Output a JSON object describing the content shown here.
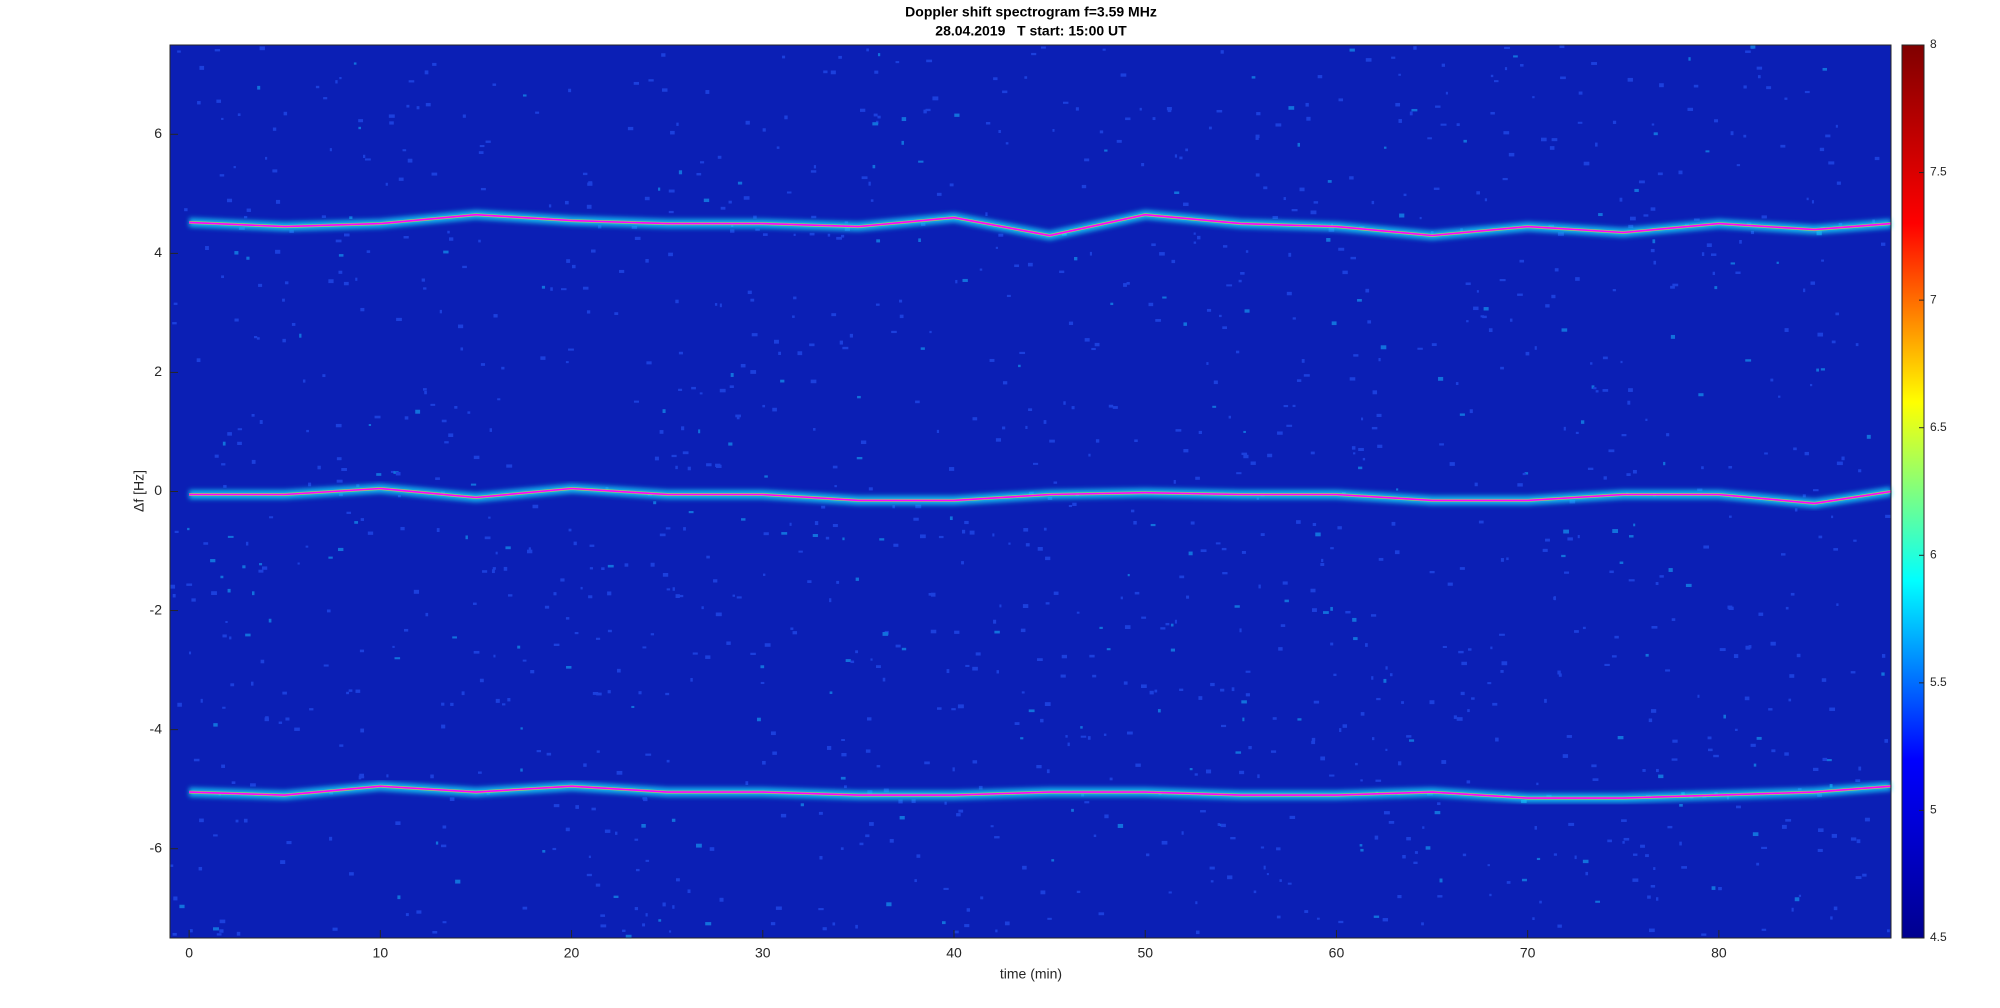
{
  "chart_data": {
    "type": "spectrogram",
    "title": "Doppler shift spectrogram f=3.59 MHz",
    "subtitle": "28.04.2019   T start: 15:00 UT",
    "x_label": "time (min)",
    "y_label": "Δf [Hz]",
    "xlim": [
      -1,
      89
    ],
    "ylim": [
      -7.5,
      7.5
    ],
    "xticks": [
      0,
      10,
      20,
      30,
      40,
      50,
      60,
      70,
      80
    ],
    "yticks": [
      -6,
      -4,
      -2,
      0,
      2,
      4,
      6
    ],
    "colormap": [
      "#00008f",
      "#0000ff",
      "#00ffff",
      "#ffff00",
      "#ff0000",
      "#800000"
    ],
    "clim": [
      4.5,
      8
    ],
    "cticks": [
      4.5,
      5,
      5.5,
      6,
      6.5,
      7,
      7.5,
      8
    ],
    "background_color": "#0b1fb5",
    "x": [
      0,
      5,
      10,
      15,
      20,
      25,
      30,
      35,
      40,
      45,
      50,
      55,
      60,
      65,
      70,
      75,
      80,
      85,
      89
    ],
    "series": [
      {
        "color": "#ff00ff",
        "values": [
          4.52,
          4.45,
          4.5,
          4.65,
          4.55,
          4.5,
          4.5,
          4.45,
          4.6,
          4.3,
          4.65,
          4.5,
          4.45,
          4.3,
          4.45,
          4.35,
          4.5,
          4.4,
          4.5
        ]
      },
      {
        "color": "#ff00ff",
        "values": [
          -0.05,
          -0.05,
          0.05,
          -0.1,
          0.05,
          -0.05,
          -0.05,
          -0.15,
          -0.15,
          -0.05,
          -0.02,
          -0.05,
          -0.05,
          -0.15,
          -0.15,
          -0.05,
          -0.05,
          -0.2,
          0
        ]
      },
      {
        "color": "#ff00ff",
        "values": [
          -5.05,
          -5.1,
          -4.95,
          -5.05,
          -4.95,
          -5.05,
          -5.05,
          -5.1,
          -5.1,
          -5.05,
          -5.05,
          -5.1,
          -5.1,
          -5.05,
          -5.15,
          -5.15,
          -5.1,
          -5.05,
          -4.95
        ]
      }
    ]
  }
}
